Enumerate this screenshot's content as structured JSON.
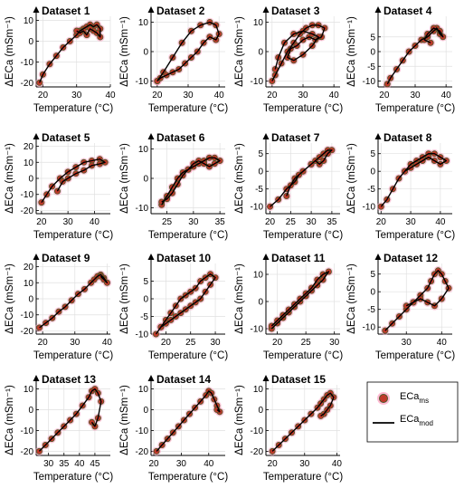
{
  "figure": {
    "legend": {
      "measured_label": "ECa",
      "measured_sub": "ms",
      "model_label": "ECa",
      "model_sub": "mod"
    },
    "colors": {
      "measured_fill": "#c0392b",
      "measured_halo": "#ff9ec0",
      "measured_edge": "#4a5a2a",
      "model_line": "#000000"
    }
  },
  "chart_data": [
    {
      "type": "line",
      "title": "Dataset 1",
      "xlabel": "Temperature (°C)",
      "ylabel": "ΔECa (mSm⁻¹)",
      "xlim": [
        18,
        40
      ],
      "ylim": [
        -22,
        12
      ],
      "xticks": [
        20,
        30,
        40
      ],
      "yticks": [
        -20,
        -10,
        0,
        10
      ],
      "series": [
        {
          "x": [
            19,
            20,
            22,
            24,
            26,
            28,
            30,
            31,
            32,
            33,
            34,
            35,
            36,
            37,
            37,
            36,
            35,
            34,
            33,
            32,
            31,
            30
          ],
          "y": [
            -20,
            -16,
            -11,
            -7,
            -3,
            0,
            3,
            5,
            6,
            7,
            8,
            7,
            8,
            6,
            2,
            4,
            5,
            6,
            3,
            5,
            4,
            5
          ]
        }
      ]
    },
    {
      "type": "line",
      "title": "Dataset 2",
      "xlabel": "Temperature (°C)",
      "ylabel": "",
      "xlim": [
        18,
        42
      ],
      "ylim": [
        -12,
        12
      ],
      "xticks": [
        20,
        30,
        40
      ],
      "yticks": [
        -10,
        0,
        10
      ],
      "series": [
        {
          "x": [
            20,
            22,
            25,
            28,
            31,
            34,
            37,
            39,
            40,
            39,
            37,
            35,
            33,
            31,
            29,
            27,
            25,
            23,
            21,
            20
          ],
          "y": [
            -10,
            -7,
            -2,
            3,
            7,
            9,
            10,
            9,
            6,
            4,
            5,
            3,
            0,
            -2,
            -4,
            -6,
            -7,
            -8,
            -9,
            -10
          ]
        }
      ]
    },
    {
      "type": "line",
      "title": "Dataset 3",
      "xlabel": "Temperature (°C)",
      "ylabel": "",
      "xlim": [
        18,
        42
      ],
      "ylim": [
        -12,
        12
      ],
      "xticks": [
        20,
        30,
        40
      ],
      "yticks": [
        -10,
        0,
        10
      ],
      "series": [
        {
          "x": [
            20,
            21,
            23,
            25,
            27,
            29,
            31,
            33,
            35,
            37,
            36,
            34,
            32,
            30,
            28,
            26,
            25,
            27,
            30,
            33,
            35,
            33,
            30,
            27,
            24,
            22,
            21
          ],
          "y": [
            -10,
            -8,
            -4,
            0,
            3,
            6,
            8,
            9,
            9,
            8,
            5,
            4,
            5,
            4,
            2,
            1,
            -2,
            -3,
            -1,
            2,
            5,
            6,
            7,
            6,
            3,
            -2,
            -6
          ]
        }
      ]
    },
    {
      "type": "line",
      "title": "Dataset 4",
      "xlabel": "Temperature (°C)",
      "ylabel": "",
      "xlim": [
        18,
        42
      ],
      "ylim": [
        -12,
        12
      ],
      "xticks": [
        20,
        30,
        40
      ],
      "yticks": [
        -10,
        -5,
        0,
        5
      ],
      "series": [
        {
          "x": [
            21,
            22,
            24,
            26,
            28,
            30,
            32,
            34,
            36,
            37,
            38,
            39,
            38,
            36,
            34,
            33,
            35
          ],
          "y": [
            -11,
            -9,
            -6,
            -3,
            0,
            2,
            4,
            5,
            7,
            8,
            6,
            5,
            7,
            8,
            6,
            4,
            3
          ]
        }
      ]
    },
    {
      "type": "line",
      "title": "Dataset 5",
      "xlabel": "Temperature (°C)",
      "ylabel": "",
      "xlim": [
        18,
        46
      ],
      "ylim": [
        -22,
        22
      ],
      "xticks": [
        20,
        30,
        40
      ],
      "yticks": [
        -20,
        -10,
        0,
        10,
        20
      ],
      "series": [
        {
          "x": [
            20,
            22,
            24,
            27,
            30,
            33,
            36,
            39,
            42,
            44,
            42,
            39,
            36,
            33,
            30,
            28,
            26
          ],
          "y": [
            -15,
            -10,
            -5,
            0,
            4,
            7,
            10,
            11,
            12,
            10,
            9,
            8,
            5,
            3,
            0,
            -2,
            -8
          ]
        }
      ]
    },
    {
      "type": "line",
      "title": "Dataset 6",
      "xlabel": "Temperature (°C)",
      "ylabel": "",
      "xlim": [
        22,
        36
      ],
      "ylim": [
        -12,
        12
      ],
      "xticks": [
        25,
        30,
        35
      ],
      "yticks": [
        -10,
        0,
        10
      ],
      "series": [
        {
          "x": [
            24,
            25,
            26,
            27,
            28,
            29,
            30,
            31,
            32,
            33,
            34,
            35,
            34,
            33,
            32,
            31,
            30,
            29,
            28,
            27,
            26,
            25,
            24
          ],
          "y": [
            -9,
            -6,
            -3,
            0,
            2,
            3,
            4,
            5,
            6,
            7,
            7,
            6,
            5,
            4,
            5,
            6,
            5,
            3,
            1,
            -2,
            -5,
            -7,
            -8
          ]
        }
      ]
    },
    {
      "type": "line",
      "title": "Dataset 7",
      "xlabel": "Temperature (°C)",
      "ylabel": "",
      "xlim": [
        19,
        37
      ],
      "ylim": [
        -12,
        8
      ],
      "xticks": [
        20,
        25,
        30,
        35
      ],
      "yticks": [
        -10,
        -5,
        0,
        5
      ],
      "series": [
        {
          "x": [
            20,
            22,
            24,
            26,
            27,
            28,
            30,
            32,
            33,
            34,
            35,
            34,
            33,
            32,
            31,
            30,
            28,
            26,
            25,
            24
          ],
          "y": [
            -10,
            -8,
            -5,
            -3,
            -1,
            0,
            2,
            4,
            5,
            6,
            6,
            5,
            3,
            2,
            3,
            2,
            0,
            -2,
            -4,
            -7
          ]
        }
      ]
    },
    {
      "type": "line",
      "title": "Dataset 8",
      "xlabel": "Temperature (°C)",
      "ylabel": "",
      "xlim": [
        19,
        44
      ],
      "ylim": [
        -12,
        8
      ],
      "xticks": [
        20,
        30,
        40
      ],
      "yticks": [
        -10,
        -5,
        0,
        5
      ],
      "series": [
        {
          "x": [
            20,
            22,
            24,
            26,
            28,
            30,
            32,
            34,
            36,
            38,
            40,
            42,
            40,
            38,
            36,
            34,
            32,
            30,
            28
          ],
          "y": [
            -10,
            -8,
            -5,
            -2,
            0,
            2,
            3,
            4,
            5,
            5,
            4,
            3,
            2,
            3,
            4,
            3,
            2,
            1,
            0
          ]
        }
      ]
    },
    {
      "type": "line",
      "title": "Dataset 9",
      "xlabel": "Temperature (°C)",
      "ylabel": "",
      "xlim": [
        18,
        41
      ],
      "ylim": [
        -22,
        22
      ],
      "xticks": [
        20,
        30,
        40
      ],
      "yticks": [
        -20,
        -10,
        0,
        10,
        20
      ],
      "series": [
        {
          "x": [
            19,
            21,
            23,
            25,
            27,
            29,
            31,
            33,
            35,
            36,
            37,
            38,
            39,
            40,
            39,
            38
          ],
          "y": [
            -18,
            -15,
            -12,
            -8,
            -5,
            -1,
            3,
            6,
            10,
            12,
            14,
            15,
            13,
            10,
            12,
            14
          ]
        }
      ]
    },
    {
      "type": "line",
      "title": "Dataset 10",
      "xlabel": "Temperature (°C)",
      "ylabel": "",
      "xlim": [
        17,
        32
      ],
      "ylim": [
        -10,
        10
      ],
      "xticks": [
        20,
        25,
        30
      ],
      "yticks": [
        -10,
        -5,
        0,
        5
      ],
      "series": [
        {
          "x": [
            18,
            19,
            20,
            21,
            22,
            23,
            24,
            25,
            26,
            27,
            28,
            29,
            30,
            29,
            28,
            27,
            26,
            25,
            24,
            23,
            22,
            21,
            20,
            19
          ],
          "y": [
            -10,
            -8,
            -6,
            -4,
            -2,
            0,
            1,
            2,
            3,
            5,
            6,
            7,
            6,
            4,
            2,
            0,
            -1,
            -2,
            -3,
            -4,
            -5,
            -6,
            -7,
            -8
          ]
        }
      ]
    },
    {
      "type": "line",
      "title": "Dataset 11",
      "xlabel": "Temperature (°C)",
      "ylabel": "",
      "xlim": [
        18,
        31
      ],
      "ylim": [
        -12,
        14
      ],
      "xticks": [
        20,
        25,
        30
      ],
      "yticks": [
        -10,
        0,
        10
      ],
      "series": [
        {
          "x": [
            19,
            20,
            21,
            22,
            23,
            24,
            25,
            26,
            27,
            28,
            29,
            28,
            27,
            26,
            25,
            24,
            23,
            22,
            21,
            20,
            19
          ],
          "y": [
            -10,
            -8,
            -6,
            -4,
            -2,
            0,
            2,
            4,
            6,
            8,
            11,
            10,
            8,
            5,
            3,
            1,
            -1,
            -3,
            -5,
            -7,
            -9
          ]
        }
      ]
    },
    {
      "type": "line",
      "title": "Dataset 12",
      "xlabel": "Temperature (°C)",
      "ylabel": "",
      "xlim": [
        22,
        43
      ],
      "ylim": [
        -12,
        8
      ],
      "xticks": [
        30,
        40
      ],
      "yticks": [
        -10,
        -5,
        0,
        5
      ],
      "series": [
        {
          "x": [
            24,
            26,
            28,
            30,
            32,
            34,
            36,
            37,
            38,
            39,
            40,
            41,
            42,
            40,
            38,
            36,
            34,
            32,
            30
          ],
          "y": [
            -11,
            -9,
            -7,
            -5,
            -3,
            -1,
            1,
            3,
            5,
            6,
            5,
            3,
            1,
            -2,
            -4,
            -3,
            -2,
            -3,
            -4
          ]
        }
      ]
    },
    {
      "type": "line",
      "title": "Dataset 13",
      "xlabel": "Temperature (°C)",
      "ylabel": "",
      "xlim": [
        26,
        50
      ],
      "ylim": [
        -22,
        12
      ],
      "xticks": [
        30,
        35,
        40,
        45
      ],
      "yticks": [
        -20,
        -10,
        0,
        10
      ],
      "series": [
        {
          "x": [
            27,
            29,
            31,
            33,
            35,
            37,
            39,
            41,
            43,
            44,
            45,
            46,
            47,
            46,
            45,
            44
          ],
          "y": [
            -20,
            -17,
            -14,
            -11,
            -8,
            -5,
            -2,
            2,
            6,
            9,
            10,
            8,
            4,
            -4,
            -8,
            -6
          ]
        }
      ]
    },
    {
      "type": "line",
      "title": "Dataset 14",
      "xlabel": "Temperature (°C)",
      "ylabel": "",
      "xlim": [
        19,
        46
      ],
      "ylim": [
        -22,
        12
      ],
      "xticks": [
        20,
        30,
        40
      ],
      "yticks": [
        -20,
        -10,
        0,
        10
      ],
      "series": [
        {
          "x": [
            21,
            23,
            25,
            27,
            29,
            31,
            33,
            35,
            37,
            39,
            40,
            41,
            42,
            43,
            44,
            43
          ],
          "y": [
            -20,
            -17,
            -14,
            -11,
            -8,
            -5,
            -2,
            1,
            4,
            7,
            9,
            8,
            5,
            2,
            -1,
            0
          ]
        }
      ]
    },
    {
      "type": "line",
      "title": "Dataset 15",
      "xlabel": "Temperature (°C)",
      "ylabel": "",
      "xlim": [
        18,
        41
      ],
      "ylim": [
        -22,
        12
      ],
      "xticks": [
        20,
        30,
        40
      ],
      "yticks": [
        -20,
        -10,
        0,
        10
      ],
      "series": [
        {
          "x": [
            20,
            22,
            24,
            26,
            28,
            30,
            32,
            34,
            35,
            36,
            37,
            38,
            39,
            38,
            37,
            36,
            35
          ],
          "y": [
            -20,
            -17,
            -14,
            -11,
            -8,
            -5,
            -2,
            1,
            3,
            5,
            7,
            8,
            6,
            2,
            0,
            -2,
            -3
          ]
        }
      ]
    }
  ]
}
